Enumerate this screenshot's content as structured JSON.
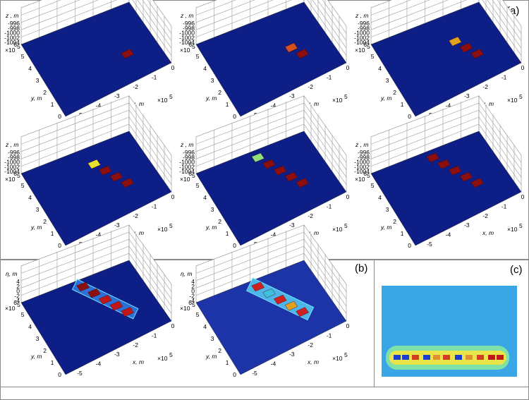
{
  "panels": {
    "a": {
      "letter": "(a)"
    },
    "b": {
      "letter": "(b)"
    },
    "c": {
      "letter": "(c)"
    }
  },
  "chart_data": [
    {
      "id": "a1",
      "type": "surface3d",
      "zlabel": "z , m",
      "ylabel": "y, m",
      "xlabel": "x, m",
      "zticks": [
        "-996",
        "-998",
        "-1000",
        "-1002",
        "-1004"
      ],
      "yticks": [
        "0",
        "1",
        "2",
        "3",
        "4",
        "5",
        "6"
      ],
      "xticks": [
        "-5",
        "-4",
        "-3",
        "-2",
        "-1",
        "0"
      ],
      "y_multiplier": "×10",
      "y_exponent": "5",
      "x_multiplier": "×10",
      "x_exponent": "5",
      "blocks": [
        {
          "x": -1.6,
          "y": 2.2,
          "color": "#8b0f0f"
        }
      ]
    },
    {
      "id": "a2",
      "type": "surface3d",
      "zlabel": "z , m",
      "ylabel": "y, m",
      "xlabel": "x, m",
      "zticks": [
        "-996",
        "-998",
        "-1000",
        "-1002",
        "-1004"
      ],
      "yticks": [
        "0",
        "1",
        "2",
        "3",
        "4",
        "5",
        "6"
      ],
      "xticks": [
        "-5",
        "-4",
        "-3",
        "-2",
        "-1",
        "0"
      ],
      "y_multiplier": "×10",
      "y_exponent": "5",
      "x_multiplier": "×10",
      "x_exponent": "5",
      "blocks": [
        {
          "x": -1.6,
          "y": 2.2,
          "color": "#8b0f0f"
        },
        {
          "x": -1.9,
          "y": 3.0,
          "color": "#d6501c"
        }
      ]
    },
    {
      "id": "a3",
      "type": "surface3d",
      "zlabel": "z , m",
      "ylabel": "y, m",
      "xlabel": "x, m",
      "zticks": [
        "-996",
        "-998",
        "-1000",
        "-1002",
        "-1004"
      ],
      "yticks": [
        "0",
        "1",
        "2",
        "3",
        "4",
        "5",
        "6"
      ],
      "xticks": [
        "-5",
        "-4",
        "-3",
        "-2",
        "-1",
        "0"
      ],
      "y_multiplier": "×10",
      "y_exponent": "5",
      "x_multiplier": "×10",
      "x_exponent": "5",
      "blocks": [
        {
          "x": -1.6,
          "y": 2.2,
          "color": "#8b0f0f"
        },
        {
          "x": -1.9,
          "y": 3.0,
          "color": "#8b0f0f"
        },
        {
          "x": -2.2,
          "y": 3.8,
          "color": "#e0a020"
        }
      ]
    },
    {
      "id": "a4",
      "type": "surface3d",
      "zlabel": "z , m",
      "ylabel": "y, m",
      "xlabel": "x, m",
      "zticks": [
        "-996",
        "-998",
        "-1000",
        "-1002",
        "-1004"
      ],
      "yticks": [
        "0",
        "1",
        "2",
        "3",
        "4",
        "5",
        "6"
      ],
      "xticks": [
        "-5",
        "-4",
        "-3",
        "-2",
        "-1",
        "0"
      ],
      "y_multiplier": "×10",
      "y_exponent": "5",
      "x_multiplier": "×10",
      "x_exponent": "5",
      "blocks": [
        {
          "x": -1.6,
          "y": 2.2,
          "color": "#8b0f0f"
        },
        {
          "x": -1.9,
          "y": 3.0,
          "color": "#8b0f0f"
        },
        {
          "x": -2.2,
          "y": 3.8,
          "color": "#8b0f0f"
        },
        {
          "x": -2.5,
          "y": 4.6,
          "color": "#e6e030"
        }
      ]
    },
    {
      "id": "a5",
      "type": "surface3d",
      "zlabel": "z , m",
      "ylabel": "y, m",
      "xlabel": "x, m",
      "zticks": [
        "-996",
        "-998",
        "-1000",
        "-1002",
        "-1004"
      ],
      "yticks": [
        "0",
        "1",
        "2",
        "3",
        "4",
        "5",
        "6"
      ],
      "xticks": [
        "-5",
        "-4",
        "-3",
        "-2",
        "-1",
        "0"
      ],
      "y_multiplier": "×10",
      "y_exponent": "5",
      "x_multiplier": "×10",
      "x_exponent": "5",
      "blocks": [
        {
          "x": -1.6,
          "y": 2.2,
          "color": "#8b0f0f"
        },
        {
          "x": -1.9,
          "y": 3.0,
          "color": "#8b0f0f"
        },
        {
          "x": -2.2,
          "y": 3.8,
          "color": "#8b0f0f"
        },
        {
          "x": -2.5,
          "y": 4.6,
          "color": "#8b0f0f"
        },
        {
          "x": -2.8,
          "y": 5.4,
          "color": "#8fe07a"
        }
      ]
    },
    {
      "id": "a6",
      "type": "surface3d",
      "zlabel": "z , m",
      "ylabel": "y, m",
      "xlabel": "x, m",
      "zticks": [
        "-996",
        "-998",
        "-1000",
        "-1002",
        "-1004"
      ],
      "yticks": [
        "0",
        "1",
        "2",
        "3",
        "4",
        "5",
        "6"
      ],
      "xticks": [
        "-5",
        "-4",
        "-3",
        "-2",
        "-1",
        "0"
      ],
      "y_multiplier": "×10",
      "y_exponent": "5",
      "x_multiplier": "×10",
      "x_exponent": "5",
      "blocks": [
        {
          "x": -1.6,
          "y": 2.2,
          "color": "#8b0f0f"
        },
        {
          "x": -1.9,
          "y": 3.0,
          "color": "#8b0f0f"
        },
        {
          "x": -2.2,
          "y": 3.8,
          "color": "#8b0f0f"
        },
        {
          "x": -2.5,
          "y": 4.6,
          "color": "#8b0f0f"
        },
        {
          "x": -2.8,
          "y": 5.4,
          "color": "#8b0f0f"
        }
      ]
    },
    {
      "id": "b1",
      "type": "surface3d",
      "zlabel": "η, m",
      "ylabel": "y, m",
      "xlabel": "x, m",
      "zticks": [
        "4",
        "2",
        "0",
        "-2",
        "-4"
      ],
      "yticks": [
        "0",
        "1",
        "2",
        "3",
        "4",
        "5",
        "6"
      ],
      "xticks": [
        "-5",
        "-4",
        "-3",
        "-2",
        "-1",
        "0"
      ],
      "y_multiplier": "×10",
      "y_exponent": "5",
      "x_multiplier": "×10",
      "x_exponent": "5",
      "blocks": [
        {
          "x": -1.6,
          "y": 2.2,
          "color": "#c01818"
        },
        {
          "x": -1.9,
          "y": 3.0,
          "color": "#c01818"
        },
        {
          "x": -2.2,
          "y": 3.8,
          "color": "#c01818"
        },
        {
          "x": -2.5,
          "y": 4.6,
          "color": "#8b0f0f"
        },
        {
          "x": -2.8,
          "y": 5.4,
          "color": "#8b0f0f"
        }
      ],
      "wave": "partial"
    },
    {
      "id": "b2",
      "type": "surface3d",
      "zlabel": "η, m",
      "ylabel": "y, m",
      "xlabel": "x, m",
      "zticks": [
        "4",
        "2",
        "0",
        "-2",
        "-4"
      ],
      "yticks": [
        "0",
        "1",
        "2",
        "3",
        "4",
        "5",
        "6"
      ],
      "xticks": [
        "-5",
        "-4",
        "-3",
        "-2",
        "-1",
        "0"
      ],
      "y_multiplier": "×10",
      "y_exponent": "5",
      "x_multiplier": "×10",
      "x_exponent": "5",
      "blocks": [
        {
          "x": -1.6,
          "y": 2.2,
          "color": "#d02020"
        },
        {
          "x": -1.9,
          "y": 3.0,
          "color": "#e0a020"
        },
        {
          "x": -2.2,
          "y": 3.8,
          "color": "#d02020"
        },
        {
          "x": -2.5,
          "y": 4.6,
          "color": "#40c0e0"
        },
        {
          "x": -2.8,
          "y": 5.4,
          "color": "#d02020"
        }
      ],
      "wave": "full"
    },
    {
      "id": "c",
      "type": "heatmap",
      "background": "#3aa6e6"
    }
  ]
}
